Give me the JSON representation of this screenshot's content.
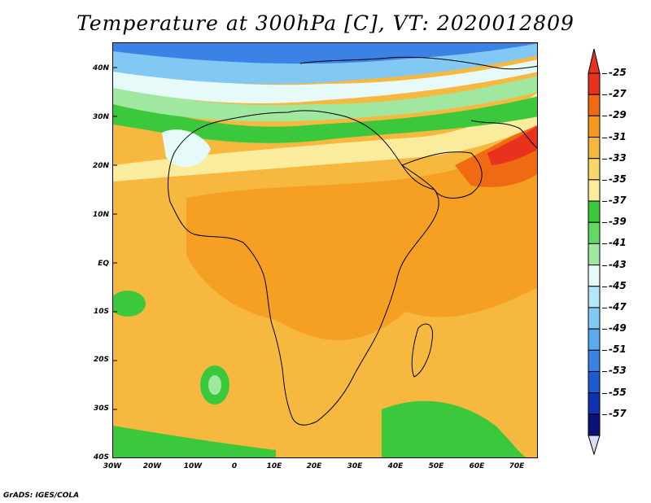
{
  "title": "Temperature at 300hPa [C], VT: 2020012809",
  "footer": "GrADS: IGES/COLA",
  "lat_labels": [
    "40N",
    "30N",
    "20N",
    "10N",
    "EQ",
    "10S",
    "20S",
    "30S",
    "40S"
  ],
  "lon_labels": [
    "30W",
    "20W",
    "10W",
    "0",
    "10E",
    "20E",
    "30E",
    "40E",
    "50E",
    "60E",
    "70E"
  ],
  "colorbar": {
    "labels": [
      "-25",
      "-27",
      "-29",
      "-31",
      "-33",
      "-35",
      "-37",
      "-39",
      "-41",
      "-43",
      "-45",
      "-47",
      "-49",
      "-51",
      "-53",
      "-55",
      "-57"
    ],
    "colors": [
      "#e8321e",
      "#f06a14",
      "#f59a1e",
      "#f7b840",
      "#f9d66a",
      "#fbeb9c",
      "#3cc83c",
      "#64d764",
      "#a0e8a0",
      "#e6fafa",
      "#b4e6fa",
      "#82c8f5",
      "#5aaaf0",
      "#3c82e6",
      "#1e5ad2",
      "#0f32b4",
      "#0a1478"
    ],
    "top_color": "#e8321e",
    "bottom_color": "#dcdcf5"
  },
  "colors": {
    "orange": "#f7b840",
    "deep_orange": "#f59a1e",
    "red": "#e8321e",
    "yellow": "#fbeb9c",
    "green": "#3cc83c",
    "light_green": "#a0e8a0",
    "pale_cyan": "#e6fafa",
    "light_blue": "#82c8f5",
    "blue": "#3c82e6"
  }
}
